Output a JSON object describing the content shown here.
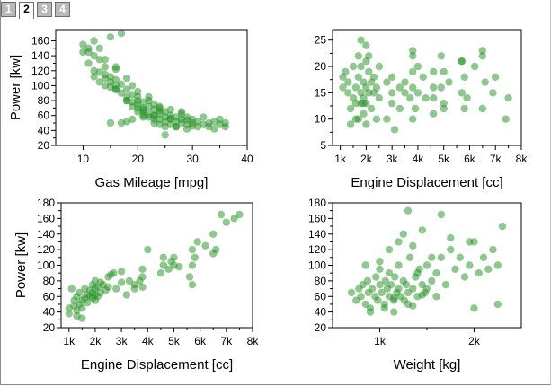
{
  "tabs": [
    {
      "label": "1",
      "active": false
    },
    {
      "label": "2",
      "active": true
    },
    {
      "label": "3",
      "active": false
    },
    {
      "label": "4",
      "active": false
    }
  ],
  "colors": {
    "marker": "#1f8f1f"
  },
  "chart_data": [
    {
      "type": "scatter",
      "xlabel": "Gas Mileage [mpg]",
      "ylabel": "Power [kw]",
      "xlim": [
        5,
        40
      ],
      "ylim": [
        20,
        175
      ],
      "xticks": [
        10,
        20,
        30,
        40
      ],
      "xtick_labels": [
        "10",
        "20",
        "30",
        "40"
      ],
      "yticks": [
        20,
        40,
        60,
        80,
        100,
        120,
        140,
        160
      ],
      "ytick_labels": [
        "20",
        "40",
        "60",
        "80",
        "100",
        "120",
        "140",
        "160"
      ],
      "x": [
        10,
        10,
        11,
        11,
        12,
        12,
        12,
        13,
        13,
        13,
        14,
        14,
        14,
        15,
        15,
        15,
        15,
        16,
        16,
        16,
        16,
        17,
        17,
        17,
        18,
        18,
        18,
        18,
        19,
        19,
        19,
        19,
        20,
        20,
        20,
        20,
        20,
        21,
        21,
        21,
        21,
        21,
        22,
        22,
        22,
        22,
        23,
        23,
        23,
        23,
        23,
        24,
        24,
        24,
        24,
        25,
        25,
        25,
        25,
        26,
        26,
        26,
        26,
        27,
        27,
        27,
        28,
        28,
        28,
        29,
        29,
        29,
        30,
        30,
        31,
        31,
        32,
        32,
        33,
        33,
        34,
        34,
        35,
        35,
        36,
        36,
        12,
        14,
        16,
        15,
        17,
        18,
        13,
        19,
        22,
        24,
        26,
        20,
        25,
        27,
        23,
        21,
        28,
        30,
        18,
        16,
        14,
        11,
        24,
        29
      ],
      "y": [
        155,
        145,
        150,
        130,
        140,
        120,
        112,
        135,
        118,
        105,
        115,
        110,
        125,
        105,
        112,
        98,
        165,
        100,
        108,
        95,
        125,
        102,
        90,
        170,
        85,
        95,
        80,
        110,
        78,
        88,
        72,
        100,
        65,
        75,
        70,
        80,
        85,
        60,
        70,
        78,
        68,
        65,
        72,
        62,
        80,
        58,
        55,
        68,
        75,
        60,
        50,
        62,
        55,
        70,
        48,
        58,
        65,
        52,
        45,
        55,
        60,
        48,
        68,
        52,
        58,
        45,
        50,
        55,
        62,
        48,
        58,
        42,
        50,
        55,
        45,
        52,
        48,
        58,
        50,
        45,
        52,
        42,
        48,
        55,
        45,
        50,
        160,
        135,
        122,
        50,
        50,
        52,
        150,
        55,
        85,
        66,
        56,
        92,
        34,
        45,
        60,
        58,
        65,
        46,
        80,
        95,
        100,
        145,
        72,
        54
      ]
    },
    {
      "type": "scatter",
      "xlabel": "Engine Displacement [cc]",
      "ylabel": "",
      "xlim": [
        700,
        8000
      ],
      "ylim": [
        5,
        27
      ],
      "xticks": [
        1000,
        2000,
        3000,
        4000,
        5000,
        6000,
        7000,
        8000
      ],
      "xtick_labels": [
        "1k",
        "2k",
        "3k",
        "4k",
        "5k",
        "6k",
        "7k",
        "8k"
      ],
      "yticks": [
        5,
        10,
        15,
        20,
        25
      ],
      "ytick_labels": [
        "5",
        "10",
        "15",
        "20",
        "25"
      ],
      "x": [
        1100,
        1100,
        1200,
        1300,
        1300,
        1400,
        1500,
        1500,
        1600,
        1600,
        1600,
        1700,
        1700,
        1800,
        1800,
        1800,
        1900,
        1900,
        1900,
        2000,
        2000,
        2000,
        2000,
        2100,
        2100,
        2200,
        2200,
        2300,
        2300,
        2400,
        2500,
        2500,
        2800,
        2800,
        3000,
        3000,
        3000,
        3300,
        3300,
        3500,
        3500,
        3700,
        3800,
        3800,
        3800,
        3900,
        4000,
        4000,
        4200,
        4300,
        4600,
        4600,
        4600,
        4900,
        4900,
        5000,
        5000,
        5200,
        5700,
        5700,
        5800,
        5800,
        5900,
        6200,
        6500,
        6500,
        6600,
        6900,
        7000,
        7400,
        7500,
        1400,
        1700,
        1900,
        2100,
        3100,
        3800,
        4600,
        5700,
        6500,
        2000,
        1800,
        2400,
        3800,
        5000
      ],
      "y": [
        16,
        18,
        19,
        15,
        17,
        12,
        20,
        14,
        10,
        13,
        16,
        22,
        18,
        15,
        25,
        20,
        11,
        14,
        17,
        24,
        21,
        13,
        16,
        19,
        15,
        17,
        12,
        15,
        18,
        16,
        14,
        20,
        10,
        17,
        18,
        15,
        13,
        16,
        12,
        15,
        17,
        14,
        23,
        19,
        16,
        12,
        20,
        15,
        18,
        14,
        19,
        16,
        14,
        22,
        16,
        19,
        13,
        17,
        21,
        15,
        12,
        18,
        14,
        20,
        23,
        12,
        17,
        15,
        18,
        10,
        14,
        9,
        10,
        13,
        22,
        8,
        22,
        11,
        21,
        22,
        9,
        13,
        10,
        10,
        12
      ]
    },
    {
      "type": "scatter",
      "xlabel": "Engine Displacement [cc]",
      "ylabel": "Power [kw]",
      "xlim": [
        700,
        8000
      ],
      "ylim": [
        20,
        180
      ],
      "xticks": [
        1000,
        2000,
        3000,
        4000,
        5000,
        6000,
        7000,
        8000
      ],
      "xtick_labels": [
        "1k",
        "2k",
        "3k",
        "4k",
        "5k",
        "6k",
        "7k",
        "8k"
      ],
      "yticks": [
        20,
        40,
        60,
        80,
        100,
        120,
        140,
        160,
        180
      ],
      "ytick_labels": [
        "20",
        "40",
        "60",
        "80",
        "100",
        "120",
        "140",
        "160",
        "180"
      ],
      "x": [
        1000,
        1000,
        1100,
        1200,
        1200,
        1300,
        1300,
        1400,
        1400,
        1500,
        1500,
        1600,
        1600,
        1700,
        1700,
        1800,
        1800,
        1900,
        1900,
        1900,
        2000,
        2000,
        2000,
        2100,
        2100,
        2200,
        2300,
        2400,
        2500,
        2500,
        2700,
        2800,
        3000,
        3000,
        3200,
        3300,
        3500,
        3500,
        3700,
        3800,
        3800,
        4000,
        4500,
        4600,
        4600,
        4800,
        4900,
        5000,
        5000,
        5200,
        5600,
        5700,
        5700,
        5800,
        5900,
        6200,
        6500,
        6500,
        6600,
        6800,
        7000,
        7300,
        7500,
        1500,
        2200,
        3800,
        5700,
        1300,
        2000,
        2600
      ],
      "y": [
        38,
        45,
        70,
        48,
        55,
        60,
        42,
        50,
        65,
        55,
        45,
        58,
        70,
        62,
        52,
        60,
        68,
        75,
        58,
        65,
        70,
        62,
        80,
        72,
        60,
        65,
        75,
        68,
        85,
        72,
        90,
        70,
        78,
        92,
        62,
        80,
        75,
        70,
        80,
        85,
        72,
        120,
        90,
        100,
        110,
        95,
        105,
        110,
        100,
        98,
        85,
        120,
        100,
        110,
        130,
        125,
        140,
        115,
        120,
        165,
        155,
        160,
        165,
        32,
        78,
        95,
        75,
        35,
        55,
        88
      ]
    },
    {
      "type": "scatter",
      "xlabel": "Weight [kg]",
      "ylabel": "",
      "xlim": [
        500,
        2500
      ],
      "ylim": [
        20,
        180
      ],
      "xticks": [
        1000,
        2000
      ],
      "xtick_labels": [
        "1k",
        "2k"
      ],
      "yticks": [
        20,
        40,
        60,
        80,
        100,
        120,
        140,
        160,
        180
      ],
      "ytick_labels": [
        "20",
        "40",
        "60",
        "80",
        "100",
        "120",
        "140",
        "160",
        "180"
      ],
      "x": [
        700,
        750,
        780,
        800,
        820,
        850,
        870,
        880,
        900,
        920,
        950,
        960,
        980,
        1000,
        1000,
        1020,
        1050,
        1060,
        1080,
        1100,
        1100,
        1120,
        1150,
        1160,
        1180,
        1200,
        1200,
        1220,
        1250,
        1260,
        1280,
        1300,
        1320,
        1350,
        1380,
        1400,
        1420,
        1450,
        1480,
        1500,
        1550,
        1600,
        1650,
        1700,
        1750,
        1800,
        1850,
        1900,
        1950,
        2000,
        2050,
        2100,
        2150,
        2200,
        2250,
        2300,
        1300,
        1450,
        1650,
        1200,
        900,
        1100,
        1350,
        1550,
        1750,
        1950,
        850,
        1000,
        1250,
        1400,
        1500,
        1600,
        2000,
        2250,
        1050,
        1150,
        1300,
        1450,
        1150,
        1350
      ],
      "y": [
        65,
        55,
        70,
        60,
        75,
        50,
        80,
        65,
        45,
        70,
        60,
        85,
        55,
        75,
        95,
        65,
        50,
        80,
        70,
        60,
        90,
        75,
        55,
        85,
        65,
        70,
        100,
        60,
        80,
        55,
        75,
        65,
        110,
        70,
        85,
        60,
        95,
        75,
        65,
        100,
        80,
        90,
        110,
        75,
        120,
        95,
        110,
        85,
        100,
        130,
        90,
        110,
        95,
        120,
        100,
        150,
        170,
        145,
        165,
        130,
        40,
        120,
        125,
        110,
        135,
        130,
        100,
        105,
        140,
        90,
        70,
        60,
        45,
        50,
        45,
        40,
        50,
        62,
        58,
        48
      ]
    }
  ]
}
